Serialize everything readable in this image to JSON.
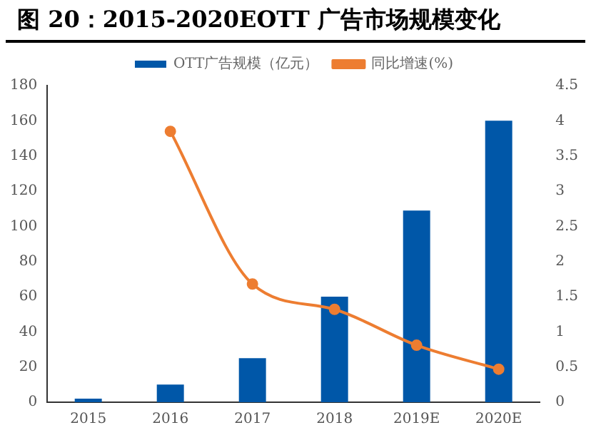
{
  "chart_data": {
    "type": "bar",
    "title": "图 20：2015-2020EOTT 广告市场规模变化",
    "categories": [
      "2015",
      "2016",
      "2017",
      "2018",
      "2019E",
      "2020E"
    ],
    "series": [
      {
        "name": "OTT广告规模（亿元）",
        "color": "#0057a8",
        "values": [
          2,
          10,
          25,
          60,
          109,
          160
        ]
      },
      {
        "name": "同比增速(%)",
        "type": "line",
        "axis": "y2",
        "color": "#ed7d31",
        "marker": "circle",
        "values": [
          null,
          3.85,
          1.68,
          1.32,
          0.81,
          0.47
        ]
      }
    ],
    "ylim": [
      0,
      180
    ],
    "yticks": [
      0,
      20,
      40,
      60,
      80,
      100,
      120,
      140,
      160,
      180
    ],
    "y2lim": [
      0,
      4.5
    ],
    "y2ticks": [
      0,
      0.5,
      1,
      1.5,
      2,
      2.5,
      3,
      3.5,
      4,
      4.5
    ],
    "grid": false,
    "legend": "top"
  }
}
